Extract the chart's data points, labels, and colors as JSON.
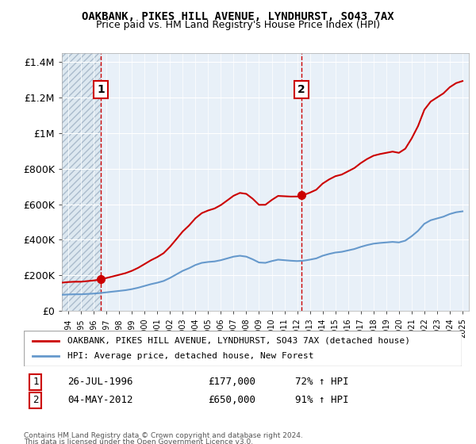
{
  "title1": "OAKBANK, PIKES HILL AVENUE, LYNDHURST, SO43 7AX",
  "title2": "Price paid vs. HM Land Registry's House Price Index (HPI)",
  "legend_line1": "OAKBANK, PIKES HILL AVENUE, LYNDHURST, SO43 7AX (detached house)",
  "legend_line2": "HPI: Average price, detached house, New Forest",
  "sale1_label": "1",
  "sale1_date": "26-JUL-1996",
  "sale1_price": "£177,000",
  "sale1_hpi": "72% ↑ HPI",
  "sale1_year": 1996.57,
  "sale1_value": 177000,
  "sale2_label": "2",
  "sale2_date": "04-MAY-2012",
  "sale2_price": "£650,000",
  "sale2_hpi": "91% ↑ HPI",
  "sale2_year": 2012.34,
  "sale2_value": 650000,
  "footer": "Contains HM Land Registry data © Crown copyright and database right 2024.\nThis data is licensed under the Open Government Licence v3.0.",
  "ylim": [
    0,
    1450000
  ],
  "xlim_start": 1993.5,
  "xlim_end": 2025.5,
  "red_color": "#cc0000",
  "blue_color": "#6699cc",
  "hatch_color": "#cccccc",
  "background_plot": "#e8f0f8",
  "background_hatch": "#dde8ee",
  "grid_color": "#ffffff",
  "dashed_line_color": "#cc0000"
}
